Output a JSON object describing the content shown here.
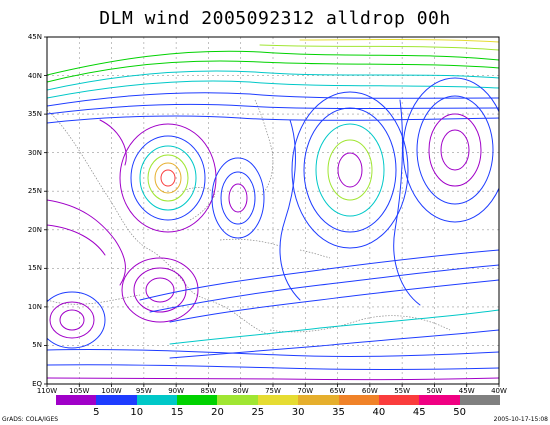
{
  "title": "DLM wind 2005092312 alldrop 00h",
  "y_axis": {
    "labels": [
      "45N",
      "40N",
      "35N",
      "30N",
      "25N",
      "20N",
      "15N",
      "10N",
      "5N",
      "EQ"
    ]
  },
  "x_axis": {
    "labels": [
      "110W",
      "105W",
      "100W",
      "95W",
      "90W",
      "85W",
      "80W",
      "75W",
      "70W",
      "65W",
      "60W",
      "55W",
      "50W",
      "45W",
      "40W"
    ]
  },
  "colorbar": {
    "colors": [
      "#a000c8",
      "#1e3cff",
      "#00c8c8",
      "#00d200",
      "#a0e632",
      "#e6dc32",
      "#e6af2d",
      "#f08228",
      "#fa3c3c",
      "#f00082",
      "#808080"
    ],
    "labels": [
      "5",
      "10",
      "15",
      "20",
      "25",
      "30",
      "35",
      "40",
      "45",
      "50"
    ]
  },
  "footer": {
    "left": "GrADS: COLA/IGES",
    "right": "2005-10-17-15:08"
  }
}
